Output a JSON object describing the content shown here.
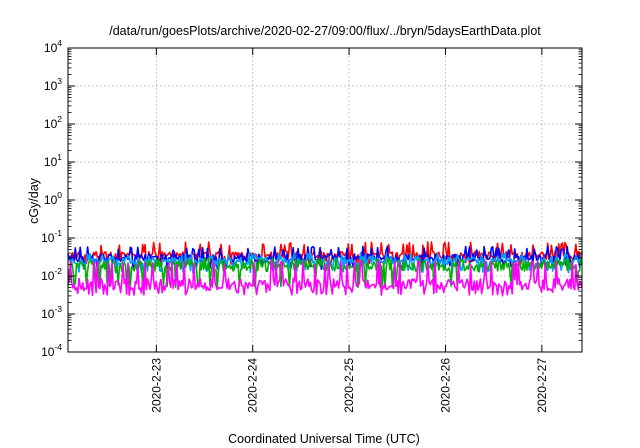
{
  "chart_data": {
    "type": "line",
    "title": "/data/run/goesPlots/archive/2020-02-27/09:00/flux/../bryn/5daysEarthData.plot",
    "xlabel": "Coordinated Universal Time (UTC)",
    "ylabel": "cGy/day",
    "y_scale": "log",
    "ylim": [
      0.0001,
      10000
    ],
    "y_ticks": [
      {
        "value": 0.0001,
        "base": "10",
        "exp": "-4"
      },
      {
        "value": 0.001,
        "base": "10",
        "exp": "-3"
      },
      {
        "value": 0.01,
        "base": "10",
        "exp": "-2"
      },
      {
        "value": 0.1,
        "base": "10",
        "exp": "-1"
      },
      {
        "value": 1,
        "base": "10",
        "exp": "0"
      },
      {
        "value": 10,
        "base": "10",
        "exp": "1"
      },
      {
        "value": 100,
        "base": "10",
        "exp": "2"
      },
      {
        "value": 1000,
        "base": "10",
        "exp": "3"
      },
      {
        "value": 10000,
        "base": "10",
        "exp": "4"
      }
    ],
    "xlim": [
      "2020-02-22 02:00",
      "2020-02-27 10:00"
    ],
    "x_ticks": [
      {
        "date": "2020-02-23",
        "label": "2020-2-23"
      },
      {
        "date": "2020-02-24",
        "label": "2020-2-24"
      },
      {
        "date": "2020-02-25",
        "label": "2020-2-25"
      },
      {
        "date": "2020-02-26",
        "label": "2020-2-26"
      },
      {
        "date": "2020-02-27",
        "label": "2020-2-27"
      }
    ],
    "grid": true,
    "legend": "none",
    "series": [
      {
        "color": "#ff0000",
        "typical_value": 0.035,
        "low": 0.02,
        "high": 0.08
      },
      {
        "color": "#0000ff",
        "typical_value": 0.03,
        "low": 0.015,
        "high": 0.06
      },
      {
        "color": "#00a0ff",
        "typical_value": 0.025,
        "low": 0.012,
        "high": 0.04
      },
      {
        "color": "#00b000",
        "typical_value": 0.018,
        "low": 0.005,
        "high": 0.03
      },
      {
        "color": "#ff00ff",
        "typical_value": 0.006,
        "low": 0.003,
        "high": 0.025
      }
    ]
  }
}
